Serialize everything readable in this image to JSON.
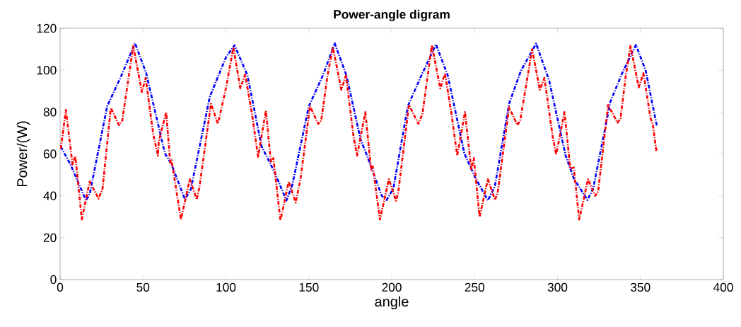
{
  "chart_data": {
    "type": "line",
    "title": "Power-angle digram",
    "xlabel": "angle",
    "ylabel": "Power/(W)",
    "xlim": [
      0,
      400
    ],
    "ylim": [
      0,
      120
    ],
    "xticks": [
      0,
      50,
      100,
      150,
      200,
      250,
      300,
      350,
      400
    ],
    "yticks": [
      0,
      20,
      40,
      60,
      80,
      100,
      120
    ],
    "line_style": "dashed",
    "series": [
      {
        "color": "#ff0000",
        "x": [
          0.4,
          3.5,
          7.5,
          9.2,
          13.1,
          17.8,
          23.2,
          25.6,
          30.6,
          35.5,
          37.5,
          41.2,
          44.1,
          46.9,
          49.3,
          51.6,
          56.2,
          59,
          59.5,
          64,
          66.4,
          67.2,
          72.9,
          78.2,
          82.4,
          84,
          91,
          95.2,
          100.2,
          104.5,
          108.7,
          111.6,
          115.9,
          119.4,
          124.1,
          127.2,
          128.6,
          132.9,
          137.9,
          142.1,
          145,
          150.7,
          155.7,
          157.5,
          161.3,
          164.5,
          169.6,
          172.4,
          177,
          179.1,
          184.1,
          187.6,
          188.6,
          192.9,
          198.3,
          202.6,
          204,
          210.4,
          216.1,
          218.5,
          221.7,
          224.2,
          229.3,
          232.1,
          236,
          239.5,
          244.2,
          248,
          249.5,
          253,
          258,
          262.3,
          264,
          270.8,
          275.8,
          277.5,
          284.7,
          289.3,
          292.1,
          297.1,
          299.2,
          304.2,
          307.7,
          309.8,
          313.1,
          318.4,
          322.7,
          324.5,
          330.5,
          336.2,
          338,
          341.2,
          344,
          349,
          351.8,
          356.1,
          357.5,
          359.6,
          360
        ],
        "values": [
          62.5,
          81,
          55,
          59,
          28.7,
          46.8,
          38.7,
          43.4,
          82,
          73.8,
          76,
          96,
          111.6,
          99.7,
          89.6,
          96.3,
          69.3,
          59.2,
          66,
          80,
          55.8,
          57,
          28.7,
          47.9,
          38.3,
          44,
          84,
          74.4,
          92,
          111,
          91.3,
          98,
          78.3,
          58.6,
          80.6,
          55.8,
          58,
          28.2,
          46.8,
          36.8,
          48,
          82.8,
          74.4,
          76,
          97.5,
          111,
          90.7,
          97.5,
          68.2,
          59.2,
          80,
          52.4,
          54,
          28.7,
          47.9,
          37.7,
          42,
          83.4,
          74.4,
          79,
          97.5,
          112,
          91.3,
          98.6,
          79.4,
          59.2,
          80,
          52.4,
          58,
          29.9,
          47.9,
          38,
          42,
          82.3,
          73.8,
          76,
          110,
          90.7,
          96.3,
          68.2,
          59.7,
          80,
          53,
          53.5,
          28.7,
          47.9,
          40,
          42,
          83.4,
          74.9,
          77,
          97.5,
          111.6,
          91.8,
          98.6,
          77.1,
          74,
          61.4,
          63
        ]
      },
      {
        "color": "#0000ff",
        "x": [
          0.4,
          6.4,
          15.6,
          17.9,
          28.4,
          37,
          45.2,
          51.9,
          63.2,
          67.2,
          75.3,
          78.8,
          90.3,
          100.2,
          105.2,
          113,
          121.5,
          129.5,
          136.5,
          140,
          150,
          158.5,
          165.6,
          172.7,
          181.2,
          185.2,
          194,
          196.9,
          201,
          209.7,
          218.2,
          226.7,
          233.8,
          243.8,
          250.2,
          258,
          262.2,
          270.8,
          277.9,
          287.1,
          294.9,
          304.9,
          310,
          318,
          321.5,
          331.9,
          339,
          347.3,
          353.2,
          360
        ],
        "values": [
          63.5,
          54.7,
          37.8,
          41,
          82.8,
          97.5,
          112.9,
          98.6,
          60.3,
          55,
          38.3,
          43,
          87.3,
          106.5,
          111.9,
          97.5,
          63.7,
          51,
          37.8,
          45,
          82.8,
          97.5,
          112.9,
          97.5,
          67,
          59,
          40,
          38,
          43.5,
          82.8,
          98,
          112.3,
          97.5,
          60.3,
          49,
          37.8,
          44.5,
          84,
          99.7,
          112.7,
          95.2,
          59.2,
          48,
          38,
          43.5,
          85,
          98.6,
          112.1,
          99.7,
          73
        ]
      }
    ]
  }
}
